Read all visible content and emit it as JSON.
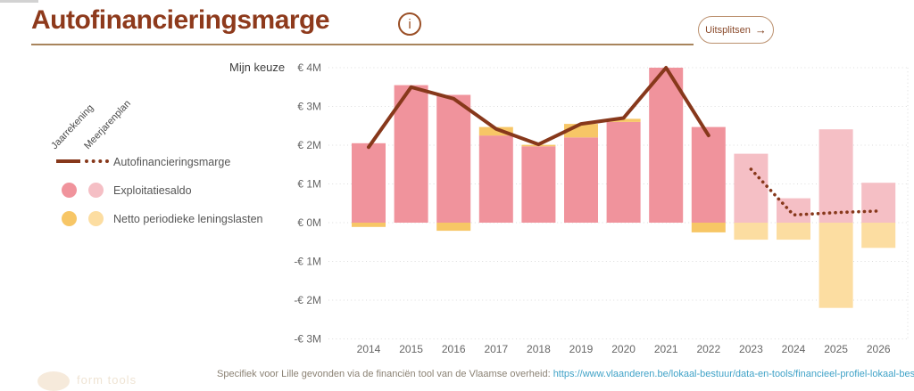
{
  "header": {
    "title": "Autofinancieringsmarge",
    "info_icon_glyph": "i",
    "uitsplitsen_label": "Uitsplitsen",
    "uitsplitsen_arrow": "→"
  },
  "controls": {
    "mijn_keuze_label": "Mijn keuze"
  },
  "legend": {
    "column_headers": [
      "Jaarrekening",
      "Meerjarenplan"
    ],
    "items": [
      {
        "label": "Autofinancieringsmarge",
        "type": "line"
      },
      {
        "label": "Exploitatiesaldo",
        "type": "circle"
      },
      {
        "label": "Netto periodieke leningslasten",
        "type": "circle"
      }
    ]
  },
  "colors": {
    "line_brown": "#87381b",
    "pink_solid": "#f0939c",
    "pink_plan": "#f5bfc5",
    "yellow_solid": "#f7c666",
    "yellow_plan": "#fcdda1",
    "gridline": "#dcdcdc",
    "axis_text": "#666666",
    "title_brown": "#8e3a1c",
    "link_blue": "#3fa2c7"
  },
  "chart_data": {
    "type": "bar",
    "subtype": "stacked bars with line overlay",
    "categories": [
      "2014",
      "2015",
      "2016",
      "2017",
      "2018",
      "2019",
      "2020",
      "2021",
      "2022",
      "2023",
      "2024",
      "2025",
      "2026"
    ],
    "series": [
      {
        "name": "Exploitatiesaldo",
        "values": [
          2.05,
          3.55,
          3.3,
          2.25,
          1.97,
          2.2,
          2.6,
          4.0,
          2.47,
          1.78,
          0.63,
          2.41,
          1.03
        ]
      },
      {
        "name": "Netto periodieke leningslasten",
        "values": [
          -0.11,
          0,
          -0.21,
          0.22,
          0.04,
          0.35,
          0.08,
          0,
          -0.25,
          -0.44,
          -0.44,
          -2.2,
          -0.65
        ]
      },
      {
        "name": "Autofinancieringsmarge",
        "values": [
          1.95,
          3.5,
          3.2,
          2.42,
          2.02,
          2.55,
          2.7,
          4.0,
          2.25,
          1.38,
          0.2,
          0.26,
          0.3
        ]
      }
    ],
    "jaarrekening_last_index": 8,
    "meerjarenplan_note": "2023-2026 drawn in lighter colors, line dotted",
    "unit": "EUR millions",
    "ylim": [
      -3,
      4
    ],
    "y_ticks": [
      {
        "label": "€ 4M",
        "value": 4
      },
      {
        "label": "€ 3M",
        "value": 3
      },
      {
        "label": "€ 2M",
        "value": 2
      },
      {
        "label": "€ 1M",
        "value": 1
      },
      {
        "label": "€ 0M",
        "value": 0
      },
      {
        "label": "-€ 1M",
        "value": -1
      },
      {
        "label": "-€ 2M",
        "value": -2
      },
      {
        "label": "-€ 3M",
        "value": -3
      }
    ],
    "grid": "dotted horizontal",
    "legend_position": "left"
  },
  "footer": {
    "text": "Specifiek voor Lille gevonden via de financiën tool van de Vlaamse overheid: ",
    "link": "https://www.vlaanderen.be/lokaal-bestuur/data-en-tools/financieel-profiel-lokaal-bestuur"
  },
  "watermark": {
    "text": "form tools"
  }
}
